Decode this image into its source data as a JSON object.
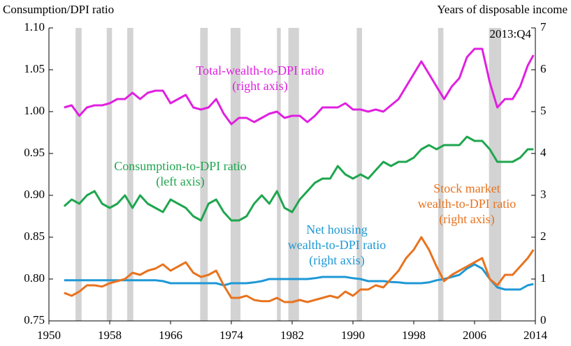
{
  "chart_data": {
    "type": "line",
    "ylabel": "Consumption/DPI ratio",
    "y2label": "Years of disposable income",
    "annotation": "2013:Q4",
    "xlim": [
      1950,
      2014
    ],
    "xticks": [
      1950,
      1958,
      1966,
      1974,
      1982,
      1990,
      1998,
      2006,
      2014
    ],
    "ylim": [
      0.75,
      1.1
    ],
    "yticks": [
      {
        "value": 0.75,
        "label": "0.75"
      },
      {
        "value": 0.8,
        "label": "0.80"
      },
      {
        "value": 0.85,
        "label": "0.85"
      },
      {
        "value": 0.9,
        "label": "0.90"
      },
      {
        "value": 0.95,
        "label": "0.95"
      },
      {
        "value": 1.0,
        "label": "1.00"
      },
      {
        "value": 1.05,
        "label": "1.05"
      },
      {
        "value": 1.1,
        "label": "1.10"
      }
    ],
    "y2lim": [
      0,
      7
    ],
    "y2ticks": [
      0,
      1,
      2,
      3,
      4,
      5,
      6,
      7
    ],
    "recessions": [
      [
        1953.5,
        1954.3
      ],
      [
        1957.6,
        1958.3
      ],
      [
        1960.3,
        1961.1
      ],
      [
        1969.9,
        1970.9
      ],
      [
        1973.9,
        1975.2
      ],
      [
        1980.0,
        1980.5
      ],
      [
        1981.5,
        1982.9
      ],
      [
        1990.5,
        1991.2
      ],
      [
        2001.2,
        2001.9
      ],
      [
        2007.9,
        2009.5
      ]
    ],
    "recession_color": "#d3d3d3",
    "x": [
      1952,
      1953,
      1954,
      1955,
      1956,
      1957,
      1958,
      1959,
      1960,
      1961,
      1962,
      1963,
      1964,
      1965,
      1966,
      1967,
      1968,
      1969,
      1970,
      1971,
      1972,
      1973,
      1974,
      1975,
      1976,
      1977,
      1978,
      1979,
      1980,
      1981,
      1982,
      1983,
      1984,
      1985,
      1986,
      1987,
      1988,
      1989,
      1990,
      1991,
      1992,
      1993,
      1994,
      1995,
      1996,
      1997,
      1998,
      1999,
      2000,
      2001,
      2002,
      2003,
      2004,
      2005,
      2006,
      2007,
      2008,
      2009,
      2010,
      2011,
      2012,
      2013,
      2013.75
    ],
    "series": [
      {
        "label": [
          "Total-wealth-to-DPI  ratio",
          "(right axis)"
        ],
        "color": "#e020e0",
        "axis": "y2",
        "values": [
          5.1,
          5.15,
          4.9,
          5.1,
          5.15,
          5.15,
          5.2,
          5.3,
          5.3,
          5.45,
          5.3,
          5.45,
          5.5,
          5.5,
          5.2,
          5.3,
          5.4,
          5.1,
          5.05,
          5.1,
          5.3,
          4.95,
          4.7,
          4.85,
          4.85,
          4.75,
          4.85,
          4.95,
          5.0,
          4.85,
          4.9,
          4.9,
          4.75,
          4.9,
          5.1,
          5.1,
          5.1,
          5.2,
          5.05,
          5.05,
          5.0,
          5.05,
          5.0,
          5.15,
          5.3,
          5.6,
          5.9,
          6.2,
          5.9,
          5.6,
          5.3,
          5.6,
          5.8,
          6.3,
          6.5,
          6.5,
          5.7,
          5.1,
          5.3,
          5.3,
          5.6,
          6.1,
          6.35
        ]
      },
      {
        "label": [
          "Consumption-to-DPI ratio",
          "(left axis)"
        ],
        "color": "#1fa64f",
        "values": [
          0.887,
          0.895,
          0.89,
          0.9,
          0.905,
          0.89,
          0.885,
          0.89,
          0.9,
          0.885,
          0.9,
          0.89,
          0.885,
          0.88,
          0.895,
          0.89,
          0.885,
          0.875,
          0.87,
          0.89,
          0.895,
          0.88,
          0.87,
          0.87,
          0.875,
          0.89,
          0.9,
          0.89,
          0.905,
          0.885,
          0.88,
          0.895,
          0.905,
          0.915,
          0.92,
          0.92,
          0.935,
          0.925,
          0.92,
          0.925,
          0.92,
          0.93,
          0.94,
          0.935,
          0.94,
          0.94,
          0.945,
          0.955,
          0.96,
          0.955,
          0.96,
          0.96,
          0.96,
          0.97,
          0.965,
          0.965,
          0.955,
          0.94,
          0.94,
          0.94,
          0.945,
          0.955,
          0.955
        ]
      },
      {
        "label": [
          "Net housing",
          "wealth-to-DPI ratio",
          "(right axis)"
        ],
        "color": "#1e98d6",
        "axis": "y2",
        "values": [
          0.97,
          0.97,
          0.97,
          0.97,
          0.97,
          0.97,
          0.97,
          0.97,
          0.97,
          0.97,
          0.97,
          0.97,
          0.97,
          0.95,
          0.9,
          0.9,
          0.9,
          0.9,
          0.9,
          0.9,
          0.9,
          0.85,
          0.9,
          0.9,
          0.9,
          0.92,
          0.95,
          1.0,
          1.0,
          1.0,
          1.0,
          1.0,
          1.0,
          1.02,
          1.05,
          1.05,
          1.05,
          1.05,
          1.02,
          1.0,
          0.95,
          0.95,
          0.95,
          0.93,
          0.92,
          0.9,
          0.9,
          0.9,
          0.92,
          0.97,
          1.0,
          1.05,
          1.1,
          1.25,
          1.35,
          1.25,
          1.0,
          0.8,
          0.75,
          0.75,
          0.75,
          0.85,
          0.88
        ]
      },
      {
        "label": [
          "Stock market",
          "wealth-to-DPI ratio",
          "(right axis)"
        ],
        "color": "#e8731f",
        "axis": "y2",
        "values": [
          0.67,
          0.6,
          0.7,
          0.85,
          0.85,
          0.82,
          0.9,
          0.95,
          1.0,
          1.15,
          1.1,
          1.2,
          1.25,
          1.35,
          1.2,
          1.3,
          1.4,
          1.15,
          1.05,
          1.1,
          1.2,
          0.85,
          0.55,
          0.55,
          0.6,
          0.5,
          0.47,
          0.47,
          0.55,
          0.45,
          0.45,
          0.5,
          0.45,
          0.5,
          0.55,
          0.6,
          0.55,
          0.7,
          0.6,
          0.75,
          0.75,
          0.85,
          0.8,
          1.0,
          1.2,
          1.5,
          1.7,
          2.0,
          1.7,
          1.3,
          0.95,
          1.1,
          1.2,
          1.3,
          1.4,
          1.5,
          1.0,
          0.85,
          1.1,
          1.1,
          1.3,
          1.5,
          1.7
        ]
      }
    ]
  }
}
